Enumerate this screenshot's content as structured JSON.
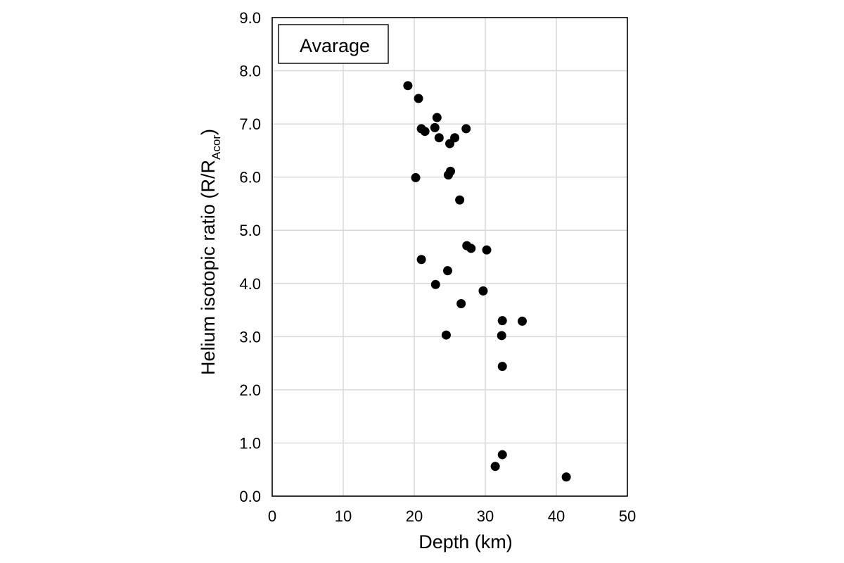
{
  "chart_data": {
    "type": "scatter",
    "xlabel": "Depth (km)",
    "ylabel": "Helium isotopic ratio (R/R",
    "ylabel_subscript": "Acor",
    "ylabel_suffix": ")",
    "xlim": [
      0,
      50
    ],
    "ylim": [
      0,
      9
    ],
    "x_ticks": [
      0,
      10,
      20,
      30,
      40,
      50
    ],
    "x_tick_labels": [
      "0",
      "10",
      "20",
      "30",
      "40",
      "50"
    ],
    "y_ticks": [
      0,
      1,
      2,
      3,
      4,
      5,
      6,
      7,
      8,
      9
    ],
    "y_tick_labels": [
      "0.0",
      "1.0",
      "2.0",
      "3.0",
      "4.0",
      "5.0",
      "6.0",
      "7.0",
      "8.0",
      "9.0"
    ],
    "grid": true,
    "legend": {
      "label": "Avarage",
      "placement": "top-left"
    },
    "colors": {
      "marker": "#000000",
      "grid": "#d9d9d9",
      "frame": "#000000"
    },
    "points": [
      {
        "x": 19.1,
        "y": 7.72
      },
      {
        "x": 20.6,
        "y": 7.48
      },
      {
        "x": 23.2,
        "y": 7.12
      },
      {
        "x": 21.0,
        "y": 6.91
      },
      {
        "x": 21.5,
        "y": 6.86
      },
      {
        "x": 22.9,
        "y": 6.93
      },
      {
        "x": 27.3,
        "y": 6.91
      },
      {
        "x": 23.5,
        "y": 6.74
      },
      {
        "x": 25.7,
        "y": 6.74
      },
      {
        "x": 25.0,
        "y": 6.63
      },
      {
        "x": 25.1,
        "y": 6.11
      },
      {
        "x": 24.8,
        "y": 6.04
      },
      {
        "x": 20.2,
        "y": 5.99
      },
      {
        "x": 26.4,
        "y": 5.57
      },
      {
        "x": 27.4,
        "y": 4.71
      },
      {
        "x": 28.0,
        "y": 4.66
      },
      {
        "x": 30.2,
        "y": 4.63
      },
      {
        "x": 21.0,
        "y": 4.45
      },
      {
        "x": 24.7,
        "y": 4.24
      },
      {
        "x": 23.0,
        "y": 3.98
      },
      {
        "x": 29.7,
        "y": 3.86
      },
      {
        "x": 26.6,
        "y": 3.62
      },
      {
        "x": 32.4,
        "y": 3.3
      },
      {
        "x": 35.2,
        "y": 3.29
      },
      {
        "x": 24.5,
        "y": 3.03
      },
      {
        "x": 32.3,
        "y": 3.02
      },
      {
        "x": 32.4,
        "y": 2.44
      },
      {
        "x": 32.4,
        "y": 0.78
      },
      {
        "x": 31.4,
        "y": 0.56
      },
      {
        "x": 41.4,
        "y": 0.36
      }
    ]
  }
}
